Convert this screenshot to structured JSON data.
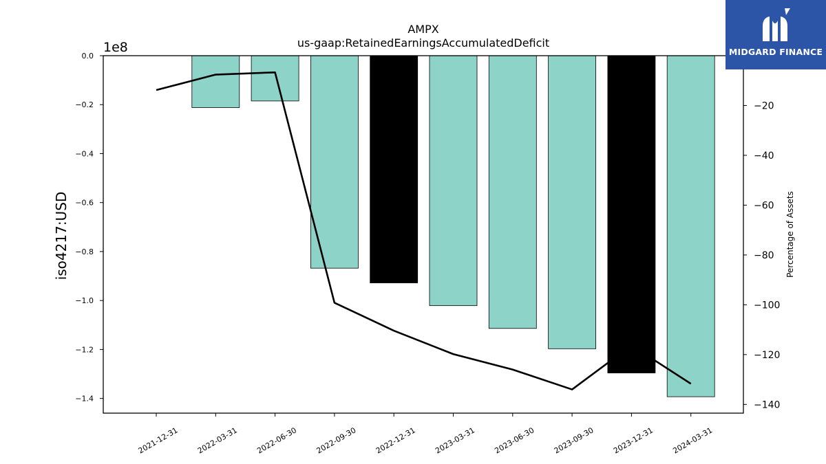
{
  "chart_data": {
    "type": "bar",
    "title": "AMPX",
    "subtitle": "us-gaap:RetainedEarningsAccumulatedDeficit",
    "ylabel": "iso4217:USD",
    "y_offset_label": "1e8",
    "y2label": "Percentage of Assets",
    "categories": [
      "2021-12-31",
      "2022-03-31",
      "2022-06-30",
      "2022-09-30",
      "2022-12-31",
      "2023-03-31",
      "2023-06-30",
      "2023-09-30",
      "2023-12-31",
      "2024-03-31"
    ],
    "values": [
      null,
      -0.212,
      -0.185,
      -0.868,
      -0.928,
      -1.021,
      -1.114,
      -1.197,
      -1.296,
      -1.393
    ],
    "value_multiplier": 100000000,
    "bar_colors": [
      "#8dd3c7",
      "#8dd3c7",
      "#8dd3c7",
      "#8dd3c7",
      "#000000",
      "#8dd3c7",
      "#8dd3c7",
      "#8dd3c7",
      "#000000",
      "#8dd3c7"
    ],
    "ylim": [
      -1.46,
      0.0
    ],
    "yticks": [
      0.0,
      -0.2,
      -0.4,
      -0.6,
      -0.8,
      -1.0,
      -1.2,
      -1.4
    ],
    "ytick_labels": [
      "0.0",
      "−0.2",
      "−0.4",
      "−0.6",
      "−0.8",
      "−1.0",
      "−1.2",
      "−1.4"
    ],
    "line": {
      "name": "Percentage of Assets",
      "values": [
        -13.8,
        -7.6,
        -6.7,
        -99.2,
        -110.4,
        -119.8,
        -126.0,
        -134.0,
        -116.3,
        -131.7
      ],
      "color": "#000000"
    },
    "y2lim": [
      -143.5,
      0
    ],
    "y2ticks": [
      -20,
      -40,
      -60,
      -80,
      -100,
      -120,
      -140
    ],
    "y2tick_labels": [
      "−20",
      "−40",
      "−60",
      "−80",
      "−100",
      "−120",
      "−140"
    ],
    "grid": false
  },
  "logo": {
    "text": "MIDGARD FINANCE",
    "color": "#2c55a8"
  }
}
